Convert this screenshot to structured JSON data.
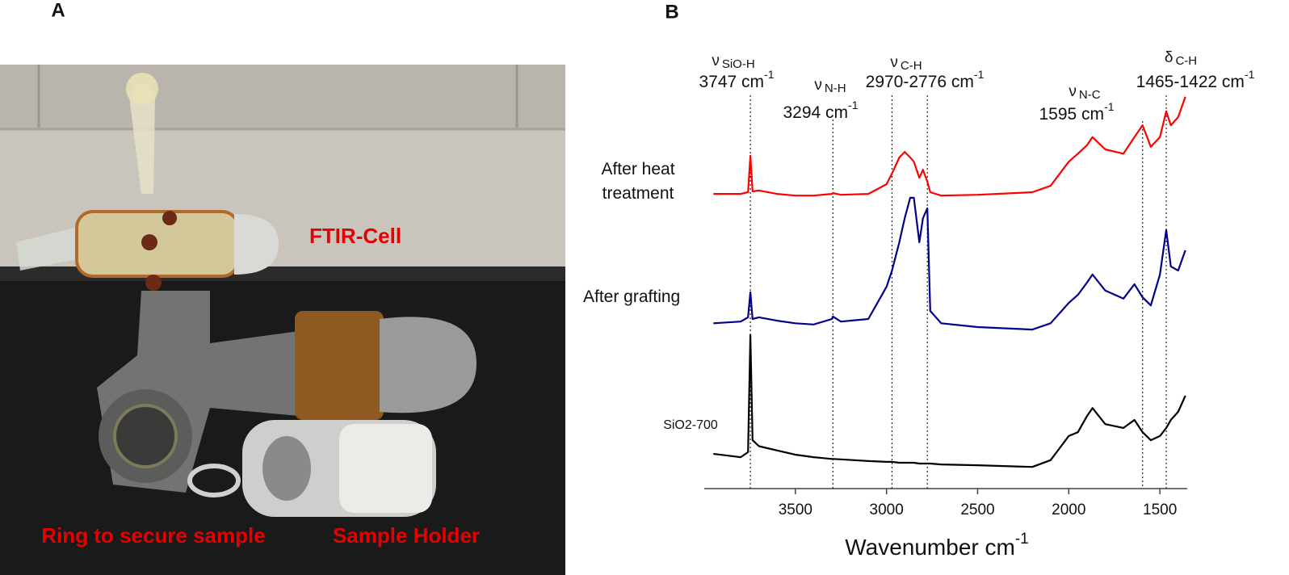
{
  "panel_a": {
    "label": "A",
    "annotations": [
      "FTIR-Cell",
      "Ring to secure sample",
      "Sample Holder"
    ]
  },
  "chart_data": {
    "type": "line",
    "panel_label": "B",
    "xlabel": "Wavenumber cm",
    "xlabel_exponent": "-1",
    "xlim": [
      4000,
      1350
    ],
    "xticks": [
      3500,
      3000,
      2500,
      2000,
      1500
    ],
    "ylim": [
      0,
      100
    ],
    "x": [
      3950,
      3800,
      3760,
      3747,
      3735,
      3700,
      3600,
      3500,
      3400,
      3300,
      3294,
      3250,
      3100,
      3000,
      2970,
      2930,
      2900,
      2870,
      2850,
      2820,
      2800,
      2776,
      2760,
      2700,
      2500,
      2200,
      2100,
      2000,
      1950,
      1900,
      1870,
      1800,
      1700,
      1640,
      1595,
      1550,
      1500,
      1465,
      1440,
      1400,
      1360
    ],
    "series": [
      {
        "name": "After heat treatment",
        "color": "#ff0000",
        "values": [
          69.5,
          69.5,
          69.9,
          78.5,
          70.1,
          70.3,
          69.5,
          69.1,
          69.1,
          69.5,
          69.7,
          69.3,
          69.5,
          71.8,
          74.3,
          78.1,
          79.4,
          78.1,
          77.1,
          73.3,
          75.2,
          72.4,
          69.9,
          69.1,
          69.3,
          69.9,
          71.4,
          77.1,
          79.0,
          81.0,
          82.9,
          80.0,
          79.0,
          82.9,
          85.7,
          80.6,
          82.9,
          89.0,
          85.7,
          87.6,
          92.4
        ]
      },
      {
        "name": "After grafting",
        "color": "#00008b",
        "values": [
          39.0,
          39.4,
          40.4,
          46.3,
          40.0,
          40.4,
          39.6,
          39.0,
          38.7,
          40.0,
          40.6,
          39.4,
          40.0,
          47.6,
          51.4,
          58.1,
          63.8,
          68.6,
          68.6,
          58.1,
          63.8,
          66.1,
          41.9,
          39.0,
          38.1,
          37.5,
          39.0,
          43.8,
          45.7,
          48.6,
          50.5,
          46.7,
          44.8,
          48.2,
          45.1,
          43.2,
          50.5,
          61.0,
          52.4,
          51.4,
          56.2
        ]
      },
      {
        "name": "SiO2-700",
        "color": "#000000",
        "values": [
          8.2,
          7.4,
          8.6,
          36.2,
          11.4,
          10.0,
          9.0,
          8.0,
          7.4,
          7.0,
          7.0,
          6.9,
          6.5,
          6.3,
          6.3,
          6.1,
          6.1,
          6.1,
          6.1,
          5.9,
          5.9,
          5.9,
          5.9,
          5.7,
          5.5,
          5.1,
          6.7,
          12.4,
          13.3,
          17.1,
          19.0,
          15.2,
          14.3,
          16.2,
          13.3,
          11.4,
          12.4,
          14.3,
          16.2,
          18.1,
          21.9
        ]
      }
    ],
    "annotations": [
      {
        "symbol": "ν",
        "group": "SiO-H",
        "position": "3747 cm",
        "exponent": "-1",
        "lines": [
          3747
        ]
      },
      {
        "symbol": "ν",
        "group": "N-H",
        "position": "3294 cm",
        "exponent": "-1",
        "lines": [
          3294
        ]
      },
      {
        "symbol": "ν",
        "group": "C-H",
        "position": "2970-2776 cm",
        "exponent": "-1",
        "lines": [
          2970,
          2776
        ]
      },
      {
        "symbol": "ν",
        "group": "N-C",
        "position": "1595 cm",
        "exponent": "-1",
        "lines": [
          1595
        ]
      },
      {
        "symbol": "δ",
        "group": "C-H",
        "position": "1465-1422 cm",
        "exponent": "-1",
        "lines": [
          1465
        ]
      }
    ]
  }
}
